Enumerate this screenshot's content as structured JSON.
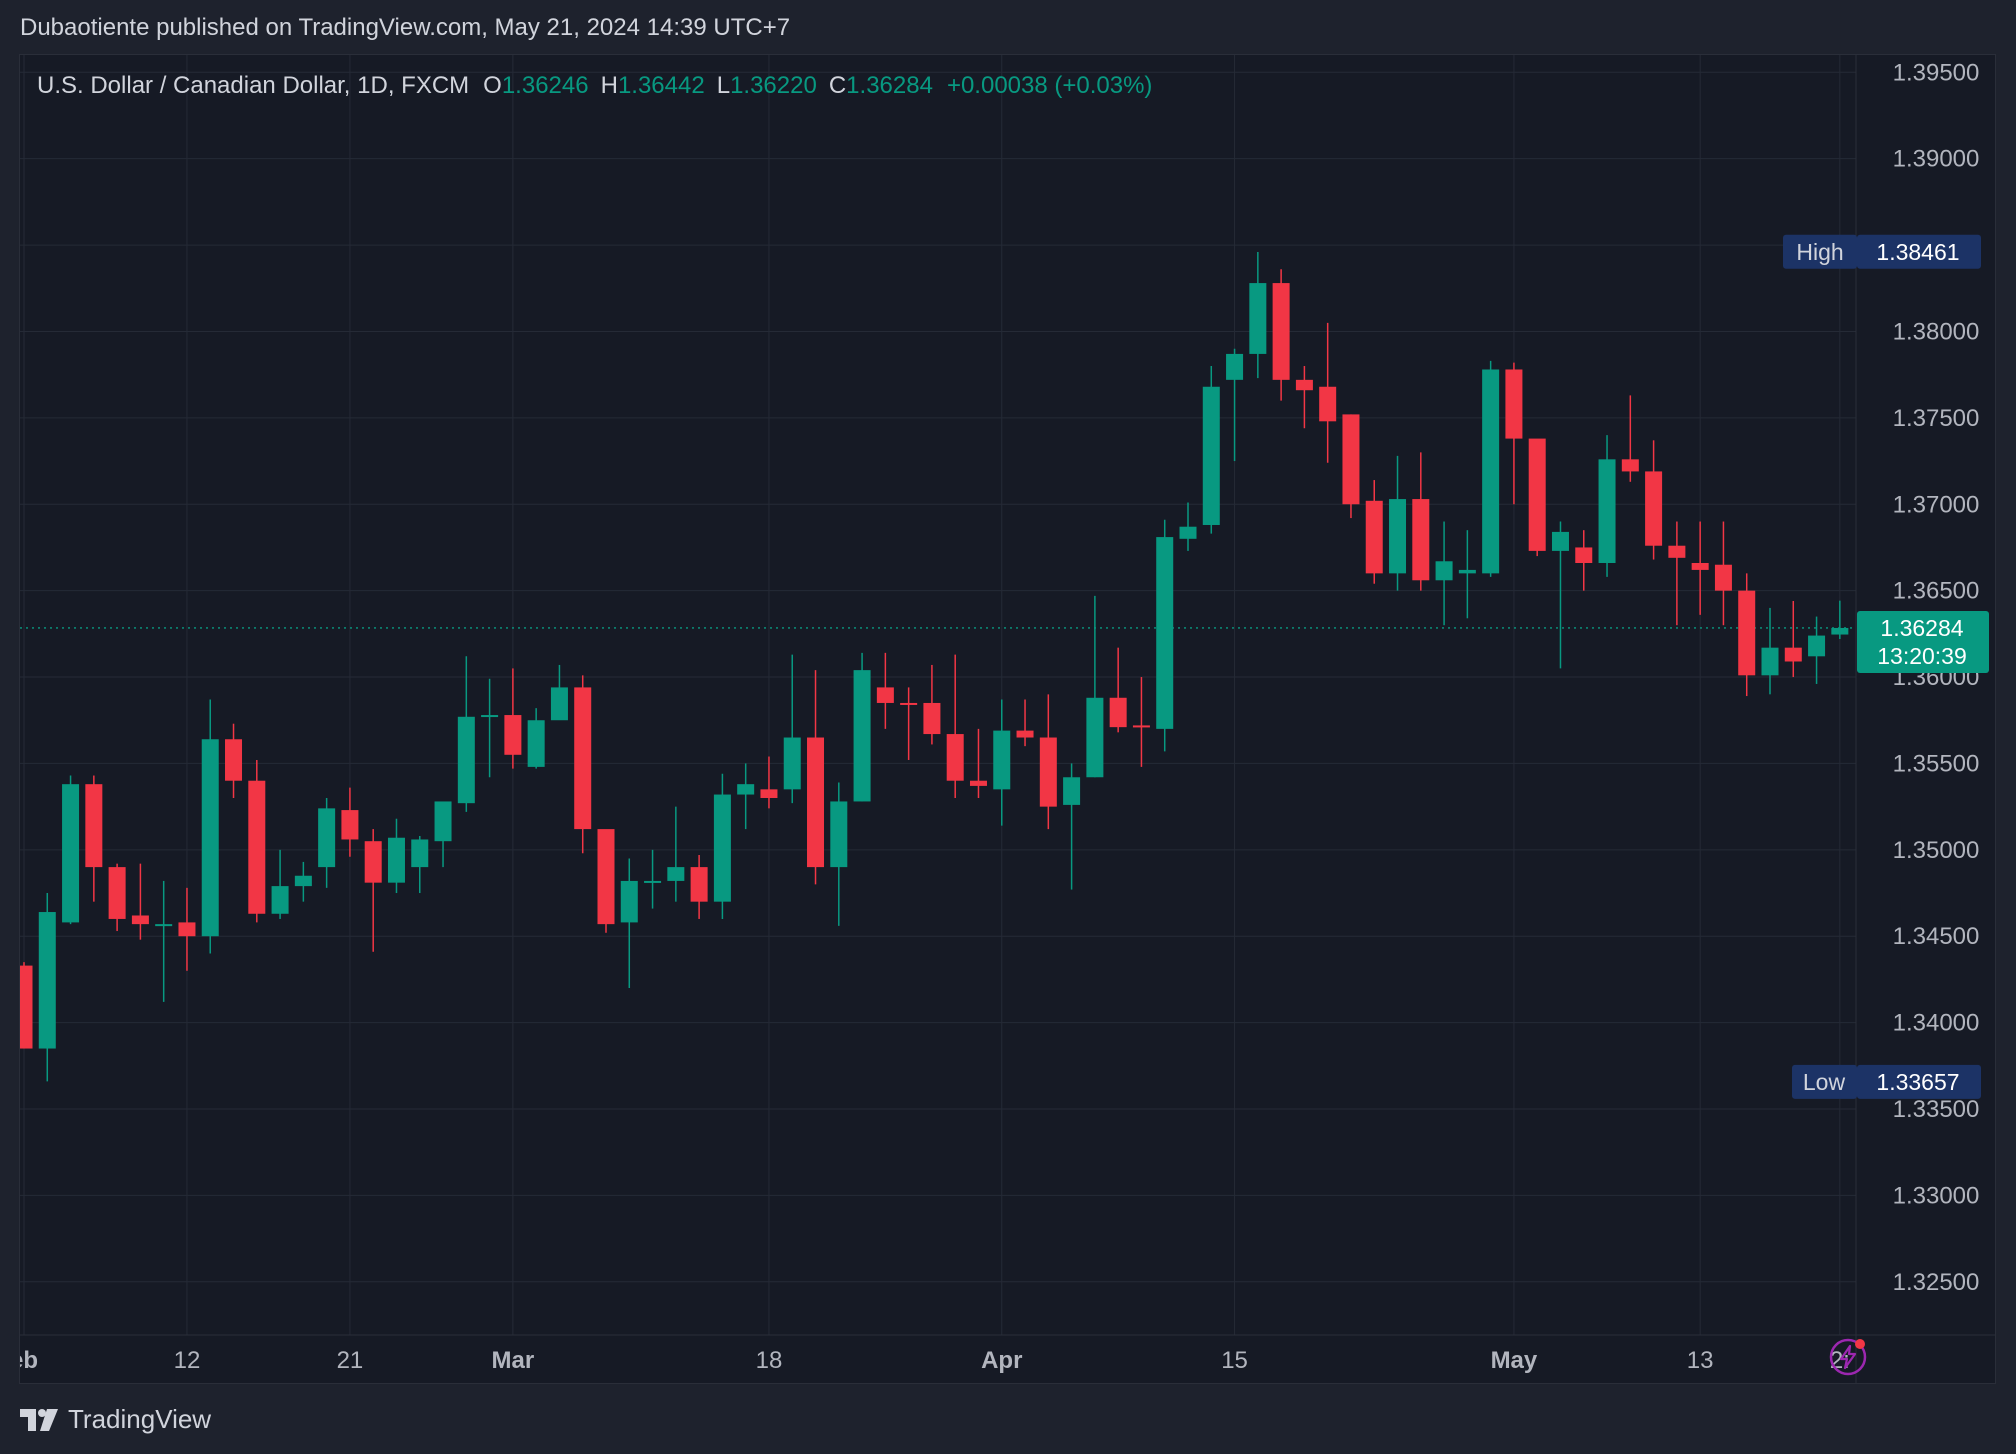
{
  "header": {
    "publish_line": "Dubaotiente published on TradingView.com, May 21, 2024 14:39 UTC+7"
  },
  "legend": {
    "symbol": "U.S. Dollar / Canadian Dollar, 1D, FXCM",
    "open_label": "O",
    "open": "1.36246",
    "high_label": "H",
    "high": "1.36442",
    "low_label": "L",
    "low": "1.36220",
    "close_label": "C",
    "close": "1.36284",
    "change": "+0.00038 (+0.03%)"
  },
  "badges": {
    "high_label": "High",
    "high_value": "1.38461",
    "low_label": "Low",
    "low_value": "1.33657",
    "last_price": "1.36284",
    "countdown": "13:20:39"
  },
  "footer": {
    "brand": "TradingView"
  },
  "colors": {
    "up": "#089981",
    "down": "#f23645",
    "background": "#161a25",
    "grid": "#252a36",
    "axis_text": "#b2b5be",
    "badge_bg": "#1c3366"
  },
  "icons": [
    "lightning-icon",
    "tradingview-logo-icon"
  ],
  "chart_data": {
    "type": "candlestick",
    "title": "U.S. Dollar / Canadian Dollar, 1D, FXCM",
    "y_ticks": [
      "1.39500",
      "1.39000",
      "1.38500",
      "1.38000",
      "1.37500",
      "1.37000",
      "1.36500",
      "1.36000",
      "1.35500",
      "1.35000",
      "1.34500",
      "1.34000",
      "1.33500",
      "1.33000",
      "1.32500"
    ],
    "ylim": [
      1.3225,
      1.396
    ],
    "x_ticks": [
      {
        "label": "eb",
        "index": 0
      },
      {
        "label": "12",
        "index": 7
      },
      {
        "label": "21",
        "index": 14
      },
      {
        "label": "Mar",
        "index": 21
      },
      {
        "label": "18",
        "index": 32
      },
      {
        "label": "Apr",
        "index": 42
      },
      {
        "label": "15",
        "index": 52
      },
      {
        "label": "May",
        "index": 64
      },
      {
        "label": "13",
        "index": 72
      },
      {
        "label": "2:",
        "index": 78
      }
    ],
    "grid": true,
    "candles": [
      {
        "date": "2024-02-05",
        "o": 1.3433,
        "h": 1.3435,
        "l": 1.3385,
        "c": 1.3385
      },
      {
        "date": "2024-02-06",
        "o": 1.3385,
        "h": 1.3475,
        "l": 1.3366,
        "c": 1.3464
      },
      {
        "date": "2024-02-07",
        "o": 1.3458,
        "h": 1.3543,
        "l": 1.3457,
        "c": 1.3538
      },
      {
        "date": "2024-02-08",
        "o": 1.3538,
        "h": 1.3543,
        "l": 1.347,
        "c": 1.349
      },
      {
        "date": "2024-02-09",
        "o": 1.349,
        "h": 1.3492,
        "l": 1.3453,
        "c": 1.346
      },
      {
        "date": "2024-02-12",
        "o": 1.3462,
        "h": 1.3492,
        "l": 1.3448,
        "c": 1.3457
      },
      {
        "date": "2024-02-13",
        "o": 1.3457,
        "h": 1.3482,
        "l": 1.3412,
        "c": 1.3457
      },
      {
        "date": "2024-02-14",
        "o": 1.3458,
        "h": 1.3478,
        "l": 1.343,
        "c": 1.345
      },
      {
        "date": "2024-02-15",
        "o": 1.345,
        "h": 1.3587,
        "l": 1.344,
        "c": 1.3564
      },
      {
        "date": "2024-02-16",
        "o": 1.3564,
        "h": 1.3573,
        "l": 1.353,
        "c": 1.354
      },
      {
        "date": "2024-02-19",
        "o": 1.354,
        "h": 1.3552,
        "l": 1.3458,
        "c": 1.3463
      },
      {
        "date": "2024-02-20",
        "o": 1.3463,
        "h": 1.35,
        "l": 1.346,
        "c": 1.3479
      },
      {
        "date": "2024-02-21",
        "o": 1.3479,
        "h": 1.3493,
        "l": 1.347,
        "c": 1.3485
      },
      {
        "date": "2024-02-22",
        "o": 1.349,
        "h": 1.353,
        "l": 1.3478,
        "c": 1.3524
      },
      {
        "date": "2024-02-23",
        "o": 1.3523,
        "h": 1.3536,
        "l": 1.3496,
        "c": 1.3506
      },
      {
        "date": "2024-02-26",
        "o": 1.3505,
        "h": 1.3512,
        "l": 1.3441,
        "c": 1.3481
      },
      {
        "date": "2024-02-27",
        "o": 1.3481,
        "h": 1.3518,
        "l": 1.3475,
        "c": 1.3507
      },
      {
        "date": "2024-02-28",
        "o": 1.349,
        "h": 1.3508,
        "l": 1.3475,
        "c": 1.3506
      },
      {
        "date": "2024-02-29",
        "o": 1.3505,
        "h": 1.3526,
        "l": 1.349,
        "c": 1.3528
      },
      {
        "date": "2024-03-01",
        "o": 1.3527,
        "h": 1.3612,
        "l": 1.3522,
        "c": 1.3577
      },
      {
        "date": "2024-03-04",
        "o": 1.3577,
        "h": 1.3599,
        "l": 1.3542,
        "c": 1.3578
      },
      {
        "date": "2024-03-05",
        "o": 1.3578,
        "h": 1.3605,
        "l": 1.3547,
        "c": 1.3555
      },
      {
        "date": "2024-03-06",
        "o": 1.3548,
        "h": 1.3582,
        "l": 1.3547,
        "c": 1.3575
      },
      {
        "date": "2024-03-07",
        "o": 1.3575,
        "h": 1.3607,
        "l": 1.3576,
        "c": 1.3594
      },
      {
        "date": "2024-03-08",
        "o": 1.3594,
        "h": 1.3601,
        "l": 1.3498,
        "c": 1.3512
      },
      {
        "date": "2024-03-11",
        "o": 1.3512,
        "h": 1.351,
        "l": 1.3452,
        "c": 1.3457
      },
      {
        "date": "2024-03-12",
        "o": 1.3458,
        "h": 1.3495,
        "l": 1.342,
        "c": 1.3482
      },
      {
        "date": "2024-03-13",
        "o": 1.3481,
        "h": 1.35,
        "l": 1.3466,
        "c": 1.3482
      },
      {
        "date": "2024-03-14",
        "o": 1.3482,
        "h": 1.3525,
        "l": 1.347,
        "c": 1.349
      },
      {
        "date": "2024-03-15",
        "o": 1.349,
        "h": 1.3497,
        "l": 1.346,
        "c": 1.347
      },
      {
        "date": "2024-03-18",
        "o": 1.347,
        "h": 1.3544,
        "l": 1.346,
        "c": 1.3532
      },
      {
        "date": "2024-03-19",
        "o": 1.3532,
        "h": 1.355,
        "l": 1.3512,
        "c": 1.3538
      },
      {
        "date": "2024-03-20",
        "o": 1.3535,
        "h": 1.3554,
        "l": 1.3524,
        "c": 1.353
      },
      {
        "date": "2024-03-21",
        "o": 1.3535,
        "h": 1.3613,
        "l": 1.3527,
        "c": 1.3565
      },
      {
        "date": "2024-03-22",
        "o": 1.3565,
        "h": 1.3604,
        "l": 1.348,
        "c": 1.349
      },
      {
        "date": "2024-03-25",
        "o": 1.349,
        "h": 1.3539,
        "l": 1.3456,
        "c": 1.3528
      },
      {
        "date": "2024-03-26",
        "o": 1.3528,
        "h": 1.3614,
        "l": 1.3528,
        "c": 1.3604
      },
      {
        "date": "2024-03-27",
        "o": 1.3594,
        "h": 1.3614,
        "l": 1.357,
        "c": 1.3585
      },
      {
        "date": "2024-03-28",
        "o": 1.3585,
        "h": 1.3594,
        "l": 1.3552,
        "c": 1.3584
      },
      {
        "date": "2024-03-29",
        "o": 1.3585,
        "h": 1.3607,
        "l": 1.3561,
        "c": 1.3567
      },
      {
        "date": "2024-04-01",
        "o": 1.3567,
        "h": 1.3613,
        "l": 1.353,
        "c": 1.354
      },
      {
        "date": "2024-04-02",
        "o": 1.354,
        "h": 1.357,
        "l": 1.353,
        "c": 1.3537
      },
      {
        "date": "2024-04-03",
        "o": 1.3535,
        "h": 1.3587,
        "l": 1.3514,
        "c": 1.3569
      },
      {
        "date": "2024-04-04",
        "o": 1.3569,
        "h": 1.3587,
        "l": 1.356,
        "c": 1.3565
      },
      {
        "date": "2024-04-05",
        "o": 1.3565,
        "h": 1.359,
        "l": 1.3512,
        "c": 1.3525
      },
      {
        "date": "2024-04-08",
        "o": 1.3526,
        "h": 1.355,
        "l": 1.3477,
        "c": 1.3542
      },
      {
        "date": "2024-04-09",
        "o": 1.3542,
        "h": 1.3647,
        "l": 1.3542,
        "c": 1.3588
      },
      {
        "date": "2024-04-10",
        "o": 1.3588,
        "h": 1.3617,
        "l": 1.3568,
        "c": 1.3571
      },
      {
        "date": "2024-04-11",
        "o": 1.3572,
        "h": 1.36,
        "l": 1.3548,
        "c": 1.3571
      },
      {
        "date": "2024-04-12",
        "o": 1.357,
        "h": 1.3691,
        "l": 1.3557,
        "c": 1.3681
      },
      {
        "date": "2024-04-15",
        "o": 1.368,
        "h": 1.3701,
        "l": 1.3673,
        "c": 1.3687
      },
      {
        "date": "2024-04-16",
        "o": 1.3688,
        "h": 1.378,
        "l": 1.3683,
        "c": 1.3768
      },
      {
        "date": "2024-04-17",
        "o": 1.3772,
        "h": 1.379,
        "l": 1.3725,
        "c": 1.3787
      },
      {
        "date": "2024-04-18",
        "o": 1.3787,
        "h": 1.3846,
        "l": 1.3773,
        "c": 1.3828
      },
      {
        "date": "2024-04-19",
        "o": 1.3828,
        "h": 1.3836,
        "l": 1.376,
        "c": 1.3772
      },
      {
        "date": "2024-04-22",
        "o": 1.3772,
        "h": 1.378,
        "l": 1.3744,
        "c": 1.3766
      },
      {
        "date": "2024-04-23",
        "o": 1.3768,
        "h": 1.3805,
        "l": 1.3724,
        "c": 1.3748
      },
      {
        "date": "2024-04-24",
        "o": 1.3752,
        "h": 1.3752,
        "l": 1.3692,
        "c": 1.37
      },
      {
        "date": "2024-04-25",
        "o": 1.3702,
        "h": 1.3714,
        "l": 1.3654,
        "c": 1.366
      },
      {
        "date": "2024-04-26",
        "o": 1.366,
        "h": 1.3728,
        "l": 1.365,
        "c": 1.3703
      },
      {
        "date": "2024-04-27",
        "o": 1.3703,
        "h": 1.373,
        "l": 1.365,
        "c": 1.3656
      },
      {
        "date": "2024-04-29",
        "o": 1.3656,
        "h": 1.369,
        "l": 1.363,
        "c": 1.3667
      },
      {
        "date": "2024-04-30",
        "o": 1.366,
        "h": 1.3685,
        "l": 1.3634,
        "c": 1.3662
      },
      {
        "date": "2024-05-01",
        "o": 1.366,
        "h": 1.3783,
        "l": 1.3658,
        "c": 1.3778
      },
      {
        "date": "2024-05-02",
        "o": 1.3778,
        "h": 1.3782,
        "l": 1.37,
        "c": 1.3738
      },
      {
        "date": "2024-05-03",
        "o": 1.3738,
        "h": 1.3737,
        "l": 1.367,
        "c": 1.3673
      },
      {
        "date": "2024-05-06",
        "o": 1.3673,
        "h": 1.369,
        "l": 1.3605,
        "c": 1.3684
      },
      {
        "date": "2024-05-07",
        "o": 1.3675,
        "h": 1.3685,
        "l": 1.365,
        "c": 1.3666
      },
      {
        "date": "2024-05-08",
        "o": 1.3666,
        "h": 1.374,
        "l": 1.3658,
        "c": 1.3726
      },
      {
        "date": "2024-05-09",
        "o": 1.3726,
        "h": 1.3763,
        "l": 1.3713,
        "c": 1.3719
      },
      {
        "date": "2024-05-10",
        "o": 1.3719,
        "h": 1.3737,
        "l": 1.3668,
        "c": 1.3676
      },
      {
        "date": "2024-05-13",
        "o": 1.3676,
        "h": 1.369,
        "l": 1.363,
        "c": 1.3669
      },
      {
        "date": "2024-05-14",
        "o": 1.3666,
        "h": 1.369,
        "l": 1.3636,
        "c": 1.3662
      },
      {
        "date": "2024-05-15",
        "o": 1.3665,
        "h": 1.369,
        "l": 1.363,
        "c": 1.365
      },
      {
        "date": "2024-05-16",
        "o": 1.365,
        "h": 1.366,
        "l": 1.3589,
        "c": 1.3601
      },
      {
        "date": "2024-05-17",
        "o": 1.3601,
        "h": 1.364,
        "l": 1.359,
        "c": 1.3617
      },
      {
        "date": "2024-05-18",
        "o": 1.3617,
        "h": 1.3644,
        "l": 1.36,
        "c": 1.3609
      },
      {
        "date": "2024-05-20",
        "o": 1.3612,
        "h": 1.3635,
        "l": 1.3596,
        "c": 1.3624
      },
      {
        "date": "2024-05-21",
        "o": 1.36246,
        "h": 1.36442,
        "l": 1.3622,
        "c": 1.36284
      }
    ]
  }
}
